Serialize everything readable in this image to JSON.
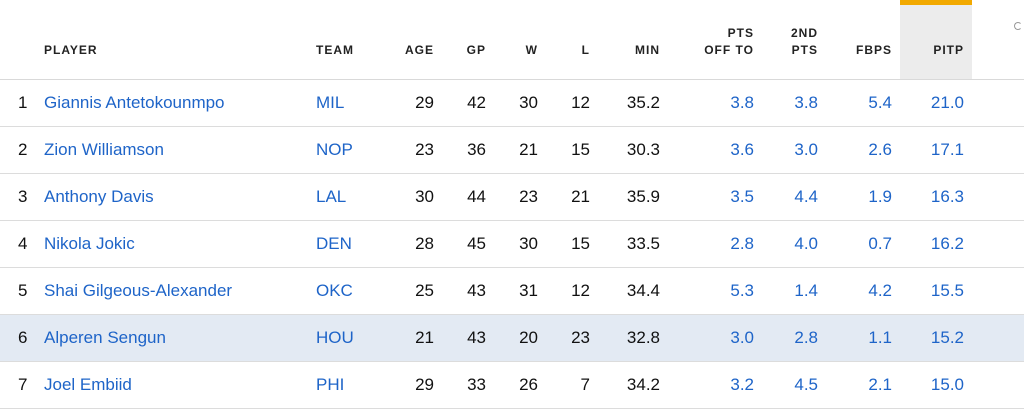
{
  "headers": {
    "player": "PLAYER",
    "team": "TEAM",
    "age": "AGE",
    "gp": "GP",
    "w": "W",
    "l": "L",
    "min": "MIN",
    "pts_off_to_line1": "PTS",
    "pts_off_to_line2": "OFF TO",
    "second_pts_line1": "2ND",
    "second_pts_line2": "PTS",
    "fbps": "FBPS",
    "pitp": "PITP"
  },
  "colors": {
    "link": "#1e64c8",
    "sort_accent": "#f2a900",
    "sorted_column_bg": "#ececec",
    "highlight_row_bg": "#e3eaf3"
  },
  "sorted_column": "PITP",
  "rows": [
    {
      "rank": "1",
      "player": "Giannis Antetokounmpo",
      "team": "MIL",
      "age": "29",
      "gp": "42",
      "w": "30",
      "l": "12",
      "min": "35.2",
      "pts_off_to": "3.8",
      "second_pts": "3.8",
      "fbps": "5.4",
      "pitp": "21.0"
    },
    {
      "rank": "2",
      "player": "Zion Williamson",
      "team": "NOP",
      "age": "23",
      "gp": "36",
      "w": "21",
      "l": "15",
      "min": "30.3",
      "pts_off_to": "3.6",
      "second_pts": "3.0",
      "fbps": "2.6",
      "pitp": "17.1"
    },
    {
      "rank": "3",
      "player": "Anthony Davis",
      "team": "LAL",
      "age": "30",
      "gp": "44",
      "w": "23",
      "l": "21",
      "min": "35.9",
      "pts_off_to": "3.5",
      "second_pts": "4.4",
      "fbps": "1.9",
      "pitp": "16.3"
    },
    {
      "rank": "4",
      "player": "Nikola Jokic",
      "team": "DEN",
      "age": "28",
      "gp": "45",
      "w": "30",
      "l": "15",
      "min": "33.5",
      "pts_off_to": "2.8",
      "second_pts": "4.0",
      "fbps": "0.7",
      "pitp": "16.2"
    },
    {
      "rank": "5",
      "player": "Shai Gilgeous-Alexander",
      "team": "OKC",
      "age": "25",
      "gp": "43",
      "w": "31",
      "l": "12",
      "min": "34.4",
      "pts_off_to": "5.3",
      "second_pts": "1.4",
      "fbps": "4.2",
      "pitp": "15.5"
    },
    {
      "rank": "6",
      "player": "Alperen Sengun",
      "team": "HOU",
      "age": "21",
      "gp": "43",
      "w": "20",
      "l": "23",
      "min": "32.8",
      "pts_off_to": "3.0",
      "second_pts": "2.8",
      "fbps": "1.1",
      "pitp": "15.2",
      "highlighted": true
    },
    {
      "rank": "7",
      "player": "Joel Embiid",
      "team": "PHI",
      "age": "29",
      "gp": "33",
      "w": "26",
      "l": "7",
      "min": "34.2",
      "pts_off_to": "3.2",
      "second_pts": "4.5",
      "fbps": "2.1",
      "pitp": "15.0"
    }
  ]
}
